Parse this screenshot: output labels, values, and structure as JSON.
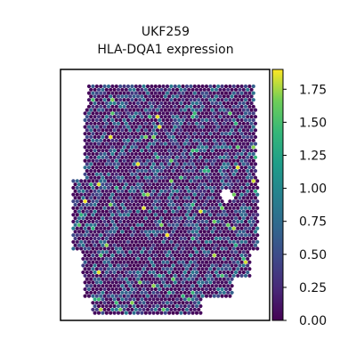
{
  "chart_data": {
    "type": "heatmap",
    "title": "UKF259",
    "subtitle": "HLA-DQA1 expression",
    "xlabel": "",
    "ylabel": "",
    "colormap": "viridis",
    "colorbar": {
      "range": [
        0,
        1.9
      ],
      "ticks": [
        0.0,
        0.25,
        0.5,
        0.75,
        1.0,
        1.25,
        1.5,
        1.75
      ],
      "tick_labels": [
        "0.00",
        "0.25",
        "0.50",
        "0.75",
        "1.00",
        "1.25",
        "1.50",
        "1.75"
      ]
    },
    "distribution": {
      "majority_value": 0.05,
      "common_range": [
        0.25,
        0.9
      ],
      "max_value": 1.9
    },
    "grid": false
  }
}
